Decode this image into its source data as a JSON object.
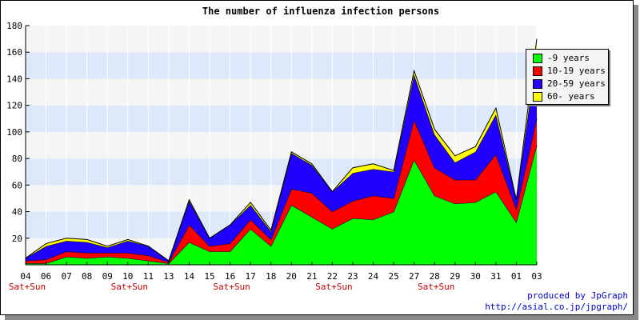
{
  "chart_data": {
    "type": "area",
    "stacked": true,
    "title": "The number of influenza infection persons",
    "xlabel": "",
    "ylabel": "",
    "ylim": [
      0,
      180
    ],
    "yticks": [
      20,
      40,
      60,
      80,
      100,
      120,
      140,
      160,
      180
    ],
    "categories": [
      "04",
      "06",
      "07",
      "08",
      "09",
      "10",
      "11",
      "13",
      "14",
      "15",
      "16",
      "17",
      "18",
      "20",
      "21",
      "22",
      "23",
      "24",
      "25",
      "27",
      "28",
      "29",
      "30",
      "31",
      "01",
      "03"
    ],
    "weekend_label": "Sat+Sun",
    "weekend_indices": [
      0,
      5,
      10,
      15,
      20
    ],
    "grid": true,
    "legend_position": "top-right",
    "series": [
      {
        "name": "-9 years",
        "color": "#00ff00",
        "values": [
          1,
          1,
          6,
          5,
          6,
          5,
          3,
          1,
          17,
          10,
          10,
          27,
          14,
          45,
          36,
          27,
          35,
          34,
          40,
          79,
          52,
          46,
          47,
          55,
          32,
          90
        ]
      },
      {
        "name": "10-19 years",
        "color": "#ff0000",
        "values": [
          2,
          3,
          4,
          4,
          3,
          4,
          4,
          1,
          13,
          4,
          6,
          7,
          5,
          12,
          18,
          13,
          13,
          18,
          10,
          30,
          21,
          18,
          17,
          28,
          10,
          20
        ]
      },
      {
        "name": "20-59 years",
        "color": "#2200ff",
        "values": [
          2,
          10,
          8,
          8,
          4,
          9,
          7,
          1,
          18,
          6,
          14,
          11,
          6,
          27,
          21,
          15,
          21,
          20,
          20,
          34,
          25,
          13,
          21,
          30,
          7,
          50
        ]
      },
      {
        "name": "60- years",
        "color": "#ffff00",
        "values": [
          0,
          2,
          2,
          2,
          1,
          1,
          0,
          0,
          1,
          0,
          0,
          2,
          1,
          1,
          1,
          0,
          4,
          4,
          1,
          3,
          4,
          5,
          4,
          5,
          0,
          10
        ]
      }
    ]
  },
  "credit": {
    "line1": "produced by JpGraph",
    "line2": "http://asial.co.jp/jpgraph/"
  }
}
